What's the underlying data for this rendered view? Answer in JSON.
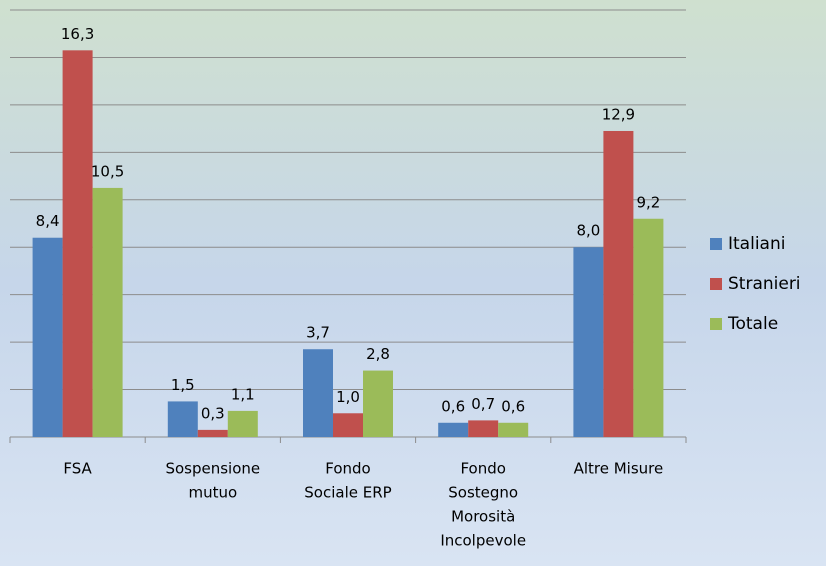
{
  "chart_data": {
    "type": "bar",
    "categories": [
      [
        "FSA"
      ],
      [
        "Sospensione",
        "mutuo"
      ],
      [
        "Fondo",
        "Sociale ERP"
      ],
      [
        "Fondo",
        "Sostegno",
        "Morosità",
        "Incolpevole"
      ],
      [
        "Altre Misure"
      ]
    ],
    "series": [
      {
        "name": "Italiani",
        "color": "#4f81bd",
        "values": [
          8.4,
          1.5,
          3.7,
          0.6,
          8.0
        ],
        "value_labels": [
          "8,4",
          "1,5",
          "3,7",
          "0,6",
          "8,0"
        ]
      },
      {
        "name": "Stranieri",
        "color": "#c0504d",
        "values": [
          16.3,
          0.3,
          1.0,
          0.7,
          12.9
        ],
        "value_labels": [
          "16,3",
          "0,3",
          "1,0",
          "0,7",
          "12,9"
        ]
      },
      {
        "name": "Totale",
        "color": "#9bbb59",
        "values": [
          10.5,
          1.1,
          2.8,
          0.6,
          9.2
        ],
        "value_labels": [
          "10,5",
          "1,1",
          "2,8",
          "0,6",
          "9,2"
        ]
      }
    ],
    "ylim": [
      0,
      18
    ],
    "yticks": [
      0,
      2,
      4,
      6,
      8,
      10,
      12,
      14,
      16,
      18
    ],
    "grid": true,
    "legend": "right"
  }
}
